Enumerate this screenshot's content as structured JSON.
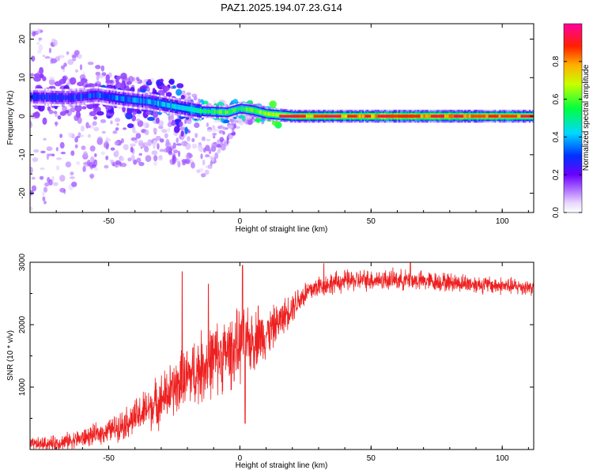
{
  "title": "PAZ1.2025.194.07.23.G14",
  "colors": {
    "snr_line": "#ee2020",
    "spectrum_background": "#ffffff",
    "axis": "#000000"
  },
  "chart_data": [
    {
      "type": "heatmap",
      "xlabel": "Height of straight line (km)",
      "ylabel": "Frequency (Hz)",
      "xlim": [
        -80,
        112
      ],
      "ylim": [
        -25,
        24
      ],
      "x_ticks": [
        -50,
        0,
        50,
        100
      ],
      "y_ticks": [
        -20,
        -10,
        0,
        10,
        20
      ],
      "colorbar": {
        "label": "Normalized spectral amplitude",
        "range": [
          0,
          1
        ],
        "ticks": [
          0.0,
          0.2,
          0.4,
          0.6,
          0.8
        ],
        "colormap": "rainbow (white-violet-blue-cyan-green-yellow-red-magenta)"
      },
      "centerline": [
        {
          "x": -78,
          "f": 5.0
        },
        {
          "x": -65,
          "f": 4.8
        },
        {
          "x": -55,
          "f": 5.5
        },
        {
          "x": -45,
          "f": 4.5
        },
        {
          "x": -35,
          "f": 3.8
        },
        {
          "x": -25,
          "f": 2.5
        },
        {
          "x": -15,
          "f": 1.3
        },
        {
          "x": -5,
          "f": 1.0
        },
        {
          "x": 0,
          "f": 2.0
        },
        {
          "x": 5,
          "f": 1.5
        },
        {
          "x": 10,
          "f": 0.6
        },
        {
          "x": 20,
          "f": 0.0
        },
        {
          "x": 50,
          "f": 0.0
        },
        {
          "x": 112,
          "f": 0.0
        }
      ],
      "amplitude_profile": [
        {
          "x": -80,
          "a": 0.25
        },
        {
          "x": -60,
          "a": 0.3
        },
        {
          "x": -45,
          "a": 0.35
        },
        {
          "x": -30,
          "a": 0.4
        },
        {
          "x": -20,
          "a": 0.45
        },
        {
          "x": -12,
          "a": 0.55
        },
        {
          "x": -5,
          "a": 0.6
        },
        {
          "x": 0,
          "a": 0.55
        },
        {
          "x": 8,
          "a": 0.65
        },
        {
          "x": 20,
          "a": 0.7
        },
        {
          "x": 40,
          "a": 0.75
        },
        {
          "x": 60,
          "a": 0.8
        },
        {
          "x": 80,
          "a": 0.78
        },
        {
          "x": 100,
          "a": 0.75
        },
        {
          "x": 112,
          "a": 0.7
        }
      ],
      "scatter_extent_hz": [
        {
          "x": -80,
          "lo": -25,
          "hi": 24
        },
        {
          "x": -50,
          "lo": -14,
          "hi": 12
        },
        {
          "x": -25,
          "lo": -12,
          "hi": 8
        },
        {
          "x": -12,
          "lo": -16,
          "hi": 4
        },
        {
          "x": 0,
          "lo": -2,
          "hi": 4
        },
        {
          "x": 15,
          "lo": -1,
          "hi": 1.5
        },
        {
          "x": 112,
          "lo": -1,
          "hi": 1
        }
      ]
    },
    {
      "type": "line",
      "xlabel": "Height of straight line (km)",
      "ylabel": "SNR (10 * v/v)",
      "xlim": [
        -80,
        112
      ],
      "ylim": [
        0,
        3000
      ],
      "x_ticks": [
        -50,
        0,
        50,
        100
      ],
      "y_ticks": [
        1000,
        2000,
        3000
      ],
      "series": [
        {
          "trend": [
            {
              "x": -80,
              "y": 80
            },
            {
              "x": -70,
              "y": 100
            },
            {
              "x": -60,
              "y": 180
            },
            {
              "x": -50,
              "y": 300
            },
            {
              "x": -40,
              "y": 500
            },
            {
              "x": -30,
              "y": 800
            },
            {
              "x": -20,
              "y": 1150
            },
            {
              "x": -10,
              "y": 1450
            },
            {
              "x": 0,
              "y": 1650
            },
            {
              "x": 5,
              "y": 1750
            },
            {
              "x": 10,
              "y": 1850
            },
            {
              "x": 15,
              "y": 2050
            },
            {
              "x": 20,
              "y": 2300
            },
            {
              "x": 25,
              "y": 2500
            },
            {
              "x": 30,
              "y": 2620
            },
            {
              "x": 40,
              "y": 2700
            },
            {
              "x": 50,
              "y": 2720
            },
            {
              "x": 60,
              "y": 2720
            },
            {
              "x": 70,
              "y": 2700
            },
            {
              "x": 80,
              "y": 2680
            },
            {
              "x": 90,
              "y": 2650
            },
            {
              "x": 100,
              "y": 2620
            },
            {
              "x": 112,
              "y": 2600
            }
          ],
          "noise": [
            {
              "x": -80,
              "amp": 120
            },
            {
              "x": -50,
              "amp": 220
            },
            {
              "x": -30,
              "amp": 500
            },
            {
              "x": -15,
              "amp": 700
            },
            {
              "x": 0,
              "amp": 700
            },
            {
              "x": 15,
              "amp": 350
            },
            {
              "x": 30,
              "amp": 220
            },
            {
              "x": 112,
              "amp": 160
            }
          ],
          "spikes": [
            {
              "x": -22,
              "y": 2850
            },
            {
              "x": -12,
              "y": 2650
            },
            {
              "x": 1,
              "y": 2950
            },
            {
              "x": 2,
              "y": 420
            },
            {
              "x": 7,
              "y": 2300
            },
            {
              "x": 32,
              "y": 2980
            },
            {
              "x": 65,
              "y": 2990
            }
          ]
        }
      ]
    }
  ]
}
